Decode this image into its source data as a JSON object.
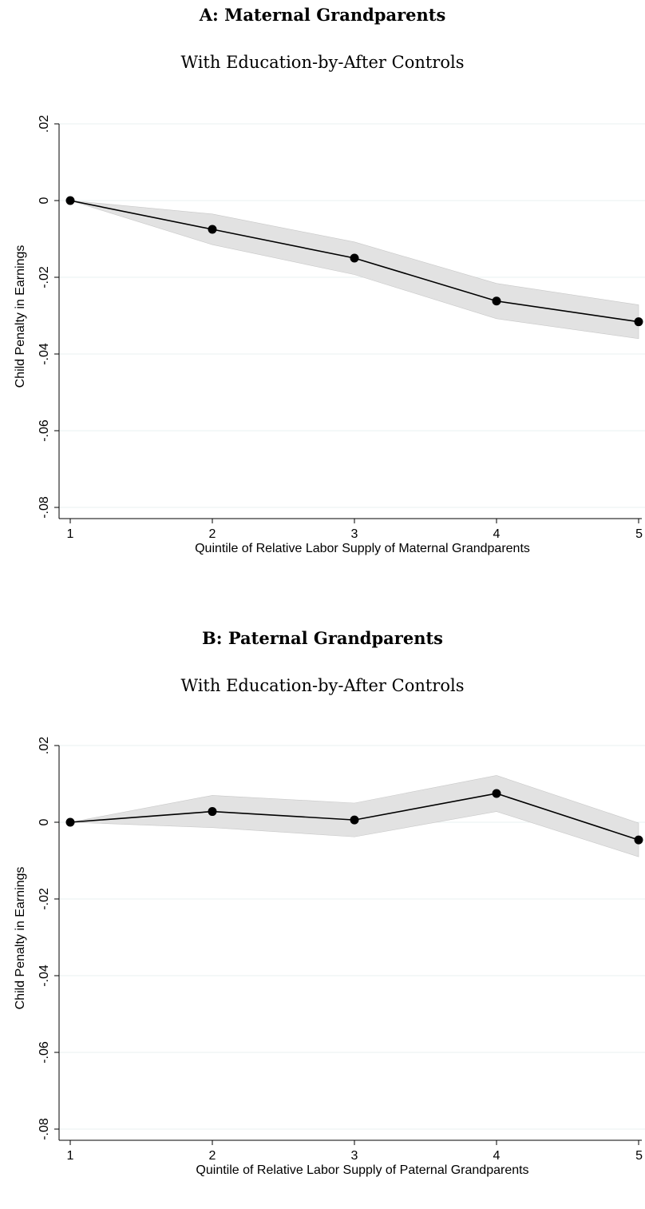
{
  "chart_data": [
    {
      "type": "line",
      "title": "A: Maternal Grandparents",
      "subtitle": "With Education-by-After Controls",
      "xlabel": "Quintile of Relative Labor Supply of Maternal Grandparents",
      "ylabel": "Child Penalty in Earnings",
      "x": [
        1,
        2,
        3,
        4,
        5
      ],
      "xticks": [
        "1",
        "2",
        "3",
        "4",
        "5"
      ],
      "yticks": [
        ".02",
        "0",
        "-.02",
        "-.04",
        "-.06",
        "-.08"
      ],
      "ylim": [
        -0.08,
        0.02
      ],
      "grid": true,
      "series": [
        {
          "values": [
            0.0,
            -0.0075,
            -0.015,
            -0.0262,
            -0.0316
          ],
          "ci_low": [
            0.0,
            -0.0115,
            -0.0193,
            -0.0308,
            -0.036
          ],
          "ci_high": [
            0.0,
            -0.0035,
            -0.0108,
            -0.0216,
            -0.0272
          ]
        }
      ]
    },
    {
      "type": "line",
      "title": "B: Paternal Grandparents",
      "subtitle": "With Education-by-After Controls",
      "xlabel": "Quintile of Relative Labor Supply of Paternal Grandparents",
      "ylabel": "Child Penalty in Earnings",
      "x": [
        1,
        2,
        3,
        4,
        5
      ],
      "xticks": [
        "1",
        "2",
        "3",
        "4",
        "5"
      ],
      "yticks": [
        ".02",
        "0",
        "-.02",
        "-.04",
        "-.06",
        "-.08"
      ],
      "ylim": [
        -0.08,
        0.02
      ],
      "grid": true,
      "series": [
        {
          "values": [
            0.0,
            0.0028,
            0.0006,
            0.0075,
            -0.0046
          ],
          "ci_low": [
            0.0,
            -0.0014,
            -0.0038,
            0.0028,
            -0.009
          ],
          "ci_high": [
            0.0,
            0.007,
            0.005,
            0.0122,
            -0.0002
          ]
        }
      ]
    }
  ]
}
